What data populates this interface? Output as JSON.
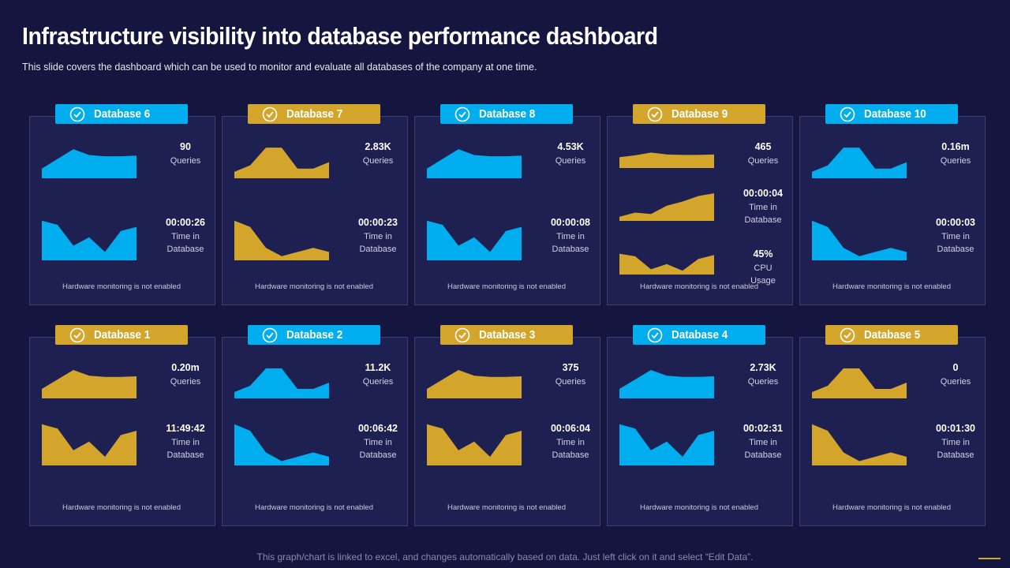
{
  "header": {
    "title": "Infrastructure visibility into database performance dashboard",
    "subtitle": "This slide covers the dashboard which can be used to monitor and evaluate  all databases of the company at one time."
  },
  "panels": [
    {
      "title": "Database 6",
      "color": "#00aeef",
      "metrics": [
        {
          "value": "90",
          "label": "Queries"
        },
        {
          "value": "00:00:26",
          "label": "Time in Database"
        }
      ],
      "note": "Hardware  monitoring  is not enabled"
    },
    {
      "title": "Database 7",
      "color": "#d4a52b",
      "metrics": [
        {
          "value": "2.83K",
          "label": "Queries"
        },
        {
          "value": "00:00:23",
          "label": "Time in Database"
        }
      ],
      "note": "Hardware  monitoring  is not enabled"
    },
    {
      "title": "Database 8",
      "color": "#00aeef",
      "metrics": [
        {
          "value": "4.53K",
          "label": "Queries"
        },
        {
          "value": "00:00:08",
          "label": "Time in Database"
        }
      ],
      "note": "Hardware  monitoring  is not enabled"
    },
    {
      "title": "Database 9",
      "color": "#d4a52b",
      "metrics": [
        {
          "value": "465",
          "label": "Queries"
        },
        {
          "value": "00:00:04",
          "label": "Time in Database"
        },
        {
          "value": "45%",
          "label": "CPU Usage"
        }
      ],
      "note": "Hardware  monitoring  is not enabled"
    },
    {
      "title": "Database 10",
      "color": "#00aeef",
      "metrics": [
        {
          "value": "0.16m",
          "label": "Queries"
        },
        {
          "value": "00:00:03",
          "label": "Time in Database"
        }
      ],
      "note": "Hardware  monitoring  is not enabled"
    },
    {
      "title": "Database 1",
      "color": "#d4a52b",
      "metrics": [
        {
          "value": "0.20m",
          "label": "Queries"
        },
        {
          "value": "11:49:42",
          "label": "Time in Database"
        }
      ],
      "note": "Hardware  monitoring  is not enabled"
    },
    {
      "title": "Database 2",
      "color": "#00aeef",
      "metrics": [
        {
          "value": "11.2K",
          "label": "Queries"
        },
        {
          "value": "00:06:42",
          "label": "Time in Database"
        }
      ],
      "note": "Hardware  monitoring  is not enabled"
    },
    {
      "title": "Database 3",
      "color": "#d4a52b",
      "metrics": [
        {
          "value": "375",
          "label": "Queries"
        },
        {
          "value": "00:06:04",
          "label": "Time in Database"
        }
      ],
      "note": "Hardware  monitoring  is not enabled"
    },
    {
      "title": "Database 4",
      "color": "#00aeef",
      "metrics": [
        {
          "value": "2.73K",
          "label": "Queries"
        },
        {
          "value": "00:02:31",
          "label": "Time in Database"
        }
      ],
      "note": "Hardware  monitoring  is not enabled"
    },
    {
      "title": "Database 5",
      "color": "#d4a52b",
      "metrics": [
        {
          "value": "0",
          "label": "Queries"
        },
        {
          "value": "00:01:30",
          "label": "Time in Database"
        }
      ],
      "note": "Hardware  monitoring  is not enabled"
    }
  ],
  "footer": {
    "note": "This graph/chart is linked to excel,  and changes automatically based on data. Just left click on it and select “Edit Data”."
  }
}
